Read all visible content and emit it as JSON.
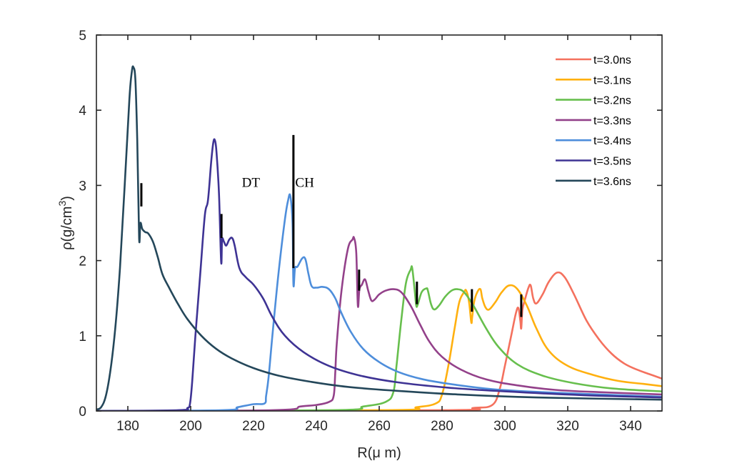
{
  "chart_data": {
    "type": "line",
    "title": "",
    "xlabel": "R(μ m)",
    "ylabel_main": "ρ(g/cm",
    "ylabel_sup": "3",
    "ylabel_close": ")",
    "xlim": [
      170,
      350
    ],
    "ylim": [
      0,
      5
    ],
    "xticks": [
      180,
      200,
      220,
      240,
      260,
      280,
      300,
      320,
      340
    ],
    "yticks": [
      0,
      1,
      2,
      3,
      4,
      5
    ],
    "grid": false,
    "legend_position": "top-right",
    "annotations": [
      {
        "text": "DT",
        "x": 219,
        "y": 3.0
      },
      {
        "text": "CH",
        "x": 236,
        "y": 3.0
      }
    ],
    "interface_markers": [
      {
        "x": 184.3,
        "y_from": 2.72,
        "y_to": 3.03
      },
      {
        "x": 209.8,
        "y_from": 2.3,
        "y_to": 2.62
      },
      {
        "x": 232.7,
        "y_from": 1.9,
        "y_to": 3.67
      },
      {
        "x": 253.6,
        "y_from": 1.6,
        "y_to": 1.88
      },
      {
        "x": 272.0,
        "y_from": 1.42,
        "y_to": 1.72
      },
      {
        "x": 289.5,
        "y_from": 1.32,
        "y_to": 1.62
      },
      {
        "x": 305.2,
        "y_from": 1.25,
        "y_to": 1.55
      }
    ],
    "series": [
      {
        "name": "t=3.0ns",
        "color": "#F4715E",
        "x": [
          170,
          280,
          290,
          296,
          298.4,
          300,
          302,
          303.5,
          304.3,
          304.9,
          305.2,
          305.6,
          306.5,
          307.5,
          308.2,
          309,
          310,
          312,
          314,
          316.6,
          319,
          322,
          326,
          330,
          334,
          338,
          342,
          346,
          350
        ],
        "y": [
          0,
          0.01,
          0.04,
          0.08,
          0.3,
          0.6,
          1.0,
          1.3,
          1.37,
          1.2,
          1.1,
          1.35,
          1.5,
          1.64,
          1.67,
          1.5,
          1.43,
          1.55,
          1.72,
          1.84,
          1.78,
          1.55,
          1.2,
          0.95,
          0.76,
          0.63,
          0.55,
          0.49,
          0.43
        ]
      },
      {
        "name": "t=3.1ns",
        "color": "#FFB00F",
        "x": [
          170,
          262,
          272,
          278,
          280,
          282,
          284,
          285.5,
          287,
          287.7,
          288.6,
          289.3,
          289.6,
          290.2,
          291.2,
          292.2,
          292.8,
          293.8,
          295,
          297,
          299,
          301.4,
          304,
          307,
          310,
          314,
          320,
          328,
          336,
          344,
          350
        ],
        "y": [
          0,
          0.01,
          0.05,
          0.1,
          0.22,
          0.6,
          1.1,
          1.45,
          1.58,
          1.6,
          1.45,
          1.18,
          1.25,
          1.45,
          1.58,
          1.62,
          1.5,
          1.38,
          1.35,
          1.45,
          1.58,
          1.67,
          1.62,
          1.4,
          1.1,
          0.8,
          0.6,
          0.48,
          0.4,
          0.36,
          0.33
        ]
      },
      {
        "name": "t=3.2ns",
        "color": "#67BF4D",
        "x": [
          170,
          245,
          255,
          262,
          264.5,
          265.5,
          267,
          268.5,
          270,
          270.5,
          271.3,
          271.8,
          272.3,
          273.5,
          275,
          275.5,
          276.5,
          277.5,
          279,
          281,
          283,
          284.8,
          287,
          290,
          294,
          298,
          304,
          312,
          322,
          334,
          350
        ],
        "y": [
          0,
          0.01,
          0.06,
          0.12,
          0.25,
          0.6,
          1.2,
          1.7,
          1.88,
          1.9,
          1.6,
          1.4,
          1.42,
          1.58,
          1.63,
          1.6,
          1.42,
          1.35,
          1.4,
          1.52,
          1.6,
          1.62,
          1.58,
          1.4,
          1.1,
          0.85,
          0.62,
          0.47,
          0.37,
          0.3,
          0.26
        ]
      },
      {
        "name": "t=3.3ns",
        "color": "#93418A",
        "x": [
          170,
          226,
          235,
          240,
          244,
          245.5,
          246,
          246.5,
          248,
          250,
          251.5,
          252,
          252.7,
          253.2,
          253.7,
          254.5,
          255.5,
          256.5,
          257.5,
          258.5,
          260,
          262,
          264.5,
          267,
          270,
          273,
          276,
          280,
          286,
          294,
          304,
          316,
          330,
          350
        ],
        "y": [
          0,
          0.01,
          0.06,
          0.08,
          0.12,
          0.2,
          0.5,
          0.9,
          1.6,
          2.15,
          2.28,
          2.3,
          2.1,
          1.4,
          1.62,
          1.68,
          1.75,
          1.6,
          1.47,
          1.48,
          1.55,
          1.6,
          1.62,
          1.58,
          1.4,
          1.15,
          0.92,
          0.72,
          0.55,
          0.42,
          0.34,
          0.28,
          0.25,
          0.22
        ]
      },
      {
        "name": "t=3.4ns",
        "color": "#4E8EDB",
        "x": [
          170,
          210,
          215,
          220,
          223.5,
          224,
          224.8,
          226,
          228,
          230,
          231,
          231.7,
          232.4,
          232.7,
          233.2,
          234,
          235.5,
          236.5,
          237.5,
          238.5,
          240,
          242,
          244,
          246,
          248,
          251,
          255,
          260,
          266,
          274,
          284,
          296,
          312,
          330,
          350
        ],
        "y": [
          0,
          0.01,
          0.05,
          0.09,
          0.1,
          0.2,
          0.45,
          1.0,
          1.85,
          2.55,
          2.8,
          2.86,
          2.5,
          1.68,
          1.9,
          1.92,
          2.03,
          2.02,
          1.82,
          1.66,
          1.64,
          1.65,
          1.62,
          1.5,
          1.3,
          1.05,
          0.82,
          0.65,
          0.52,
          0.42,
          0.35,
          0.29,
          0.25,
          0.22,
          0.19
        ]
      },
      {
        "name": "t=3.5ns",
        "color": "#3E3394",
        "x": [
          170,
          196,
          199,
          199.8,
          200.5,
          201.5,
          203,
          204.5,
          205.5,
          206.5,
          207.2,
          207.7,
          208.2,
          209,
          209.7,
          210,
          210.6,
          211.3,
          212.3,
          213.2,
          214,
          215.5,
          217.5,
          220,
          223,
          226,
          230,
          236,
          244,
          254,
          266,
          282,
          300,
          325,
          350
        ],
        "y": [
          0,
          0.01,
          0.04,
          0.1,
          0.4,
          1.0,
          1.8,
          2.6,
          2.8,
          3.3,
          3.57,
          3.6,
          3.45,
          2.9,
          1.98,
          2.28,
          2.25,
          2.2,
          2.28,
          2.3,
          2.2,
          1.9,
          1.78,
          1.68,
          1.5,
          1.25,
          1.0,
          0.78,
          0.6,
          0.47,
          0.38,
          0.31,
          0.26,
          0.21,
          0.18
        ]
      },
      {
        "name": "t=3.6ns",
        "color": "#24475A",
        "x": [
          170,
          171.5,
          173,
          174.5,
          176,
          177.5,
          179,
          180.5,
          181.3,
          181.8,
          182.4,
          183,
          183.6,
          184,
          184.6,
          185.5,
          186.5,
          188,
          189.5,
          191,
          193,
          196,
          199,
          203.4,
          208,
          213,
          220,
          228,
          238,
          250,
          265,
          285,
          310,
          350
        ],
        "y": [
          0.02,
          0.05,
          0.2,
          0.55,
          1.1,
          1.9,
          3.0,
          4.15,
          4.52,
          4.57,
          4.4,
          3.6,
          2.3,
          2.5,
          2.42,
          2.38,
          2.36,
          2.25,
          2.05,
          1.82,
          1.65,
          1.42,
          1.22,
          1.0,
          0.83,
          0.7,
          0.57,
          0.47,
          0.39,
          0.32,
          0.27,
          0.22,
          0.18,
          0.15
        ]
      }
    ]
  }
}
